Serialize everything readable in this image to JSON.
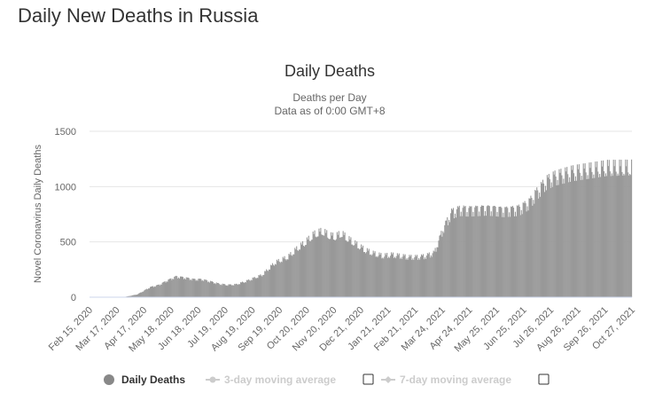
{
  "page": {
    "title": "Daily New Deaths in Russia"
  },
  "colors": {
    "bar": "#999999",
    "axis": "#ccd6eb",
    "grid": "#e6e6e6",
    "text": "#333333",
    "tick": "#666666",
    "legend_muted": "#cccccc"
  },
  "legend": {
    "items": [
      {
        "label": "Daily Deaths",
        "marker": "circle",
        "active": true,
        "checkbox": false
      },
      {
        "label": "3-day moving average",
        "marker": "circle-line",
        "active": false,
        "checkbox": true
      },
      {
        "label": "7-day moving average",
        "marker": "diamond-line",
        "active": false,
        "checkbox": true
      }
    ]
  },
  "chart_data": {
    "type": "bar",
    "title": "Daily Deaths",
    "subtitle_lines": [
      "Deaths per Day",
      "Data as of 0:00 GMT+8"
    ],
    "xlabel": "",
    "ylabel": "Novel Coronavirus Daily Deaths",
    "ylim": [
      0,
      1500
    ],
    "yticks": [
      0,
      500,
      1000,
      1500
    ],
    "grid": true,
    "legend_position": "bottom",
    "x_start": "Feb 15, 2020",
    "x_tick_labels": [
      "Feb 15, 2020",
      "Mar 17, 2020",
      "Apr 17, 2020",
      "May 18, 2020",
      "Jun 18, 2020",
      "Jul 19, 2020",
      "Aug 19, 2020",
      "Sep 19, 2020",
      "Oct 20, 2020",
      "Nov 20, 2020",
      "Dec 21, 2020",
      "Jan 21, 2021",
      "Feb 21, 2021",
      "Mar 24, 2021",
      "Apr 24, 2021",
      "May 25, 2021",
      "Jun 25, 2021",
      "Jul 26, 2021",
      "Aug 26, 2021",
      "Sep 26, 2021",
      "Oct 27, 2021"
    ],
    "series": [
      {
        "name": "Daily Deaths",
        "days_from_start": [
          0,
          30,
          40,
          55,
          62,
          70,
          80,
          90,
          100,
          110,
          120,
          130,
          140,
          150,
          160,
          170,
          180,
          190,
          200,
          215,
          230,
          240,
          250,
          260,
          270,
          278,
          285,
          292,
          300,
          310,
          320,
          330,
          340,
          350,
          360,
          370,
          380,
          390,
          400,
          410,
          420,
          430,
          440,
          450,
          460,
          470,
          480,
          490,
          495,
          500,
          510,
          520,
          530,
          540,
          550,
          560,
          570,
          580,
          590,
          600,
          605,
          610,
          615,
          620,
          625,
          630
        ],
        "values": [
          0,
          0,
          2,
          25,
          55,
          90,
          110,
          150,
          185,
          175,
          160,
          160,
          140,
          120,
          110,
          115,
          140,
          170,
          200,
          310,
          360,
          430,
          490,
          560,
          590,
          550,
          540,
          570,
          520,
          470,
          420,
          390,
          370,
          380,
          370,
          360,
          360,
          370,
          400,
          610,
          760,
          790,
          785,
          790,
          795,
          790,
          780,
          785,
          790,
          800,
          850,
          950,
          1040,
          1080,
          1100,
          1120,
          1130,
          1140,
          1150,
          1160,
          1160,
          1160,
          1160,
          1160,
          1160,
          1160
        ]
      }
    ]
  }
}
